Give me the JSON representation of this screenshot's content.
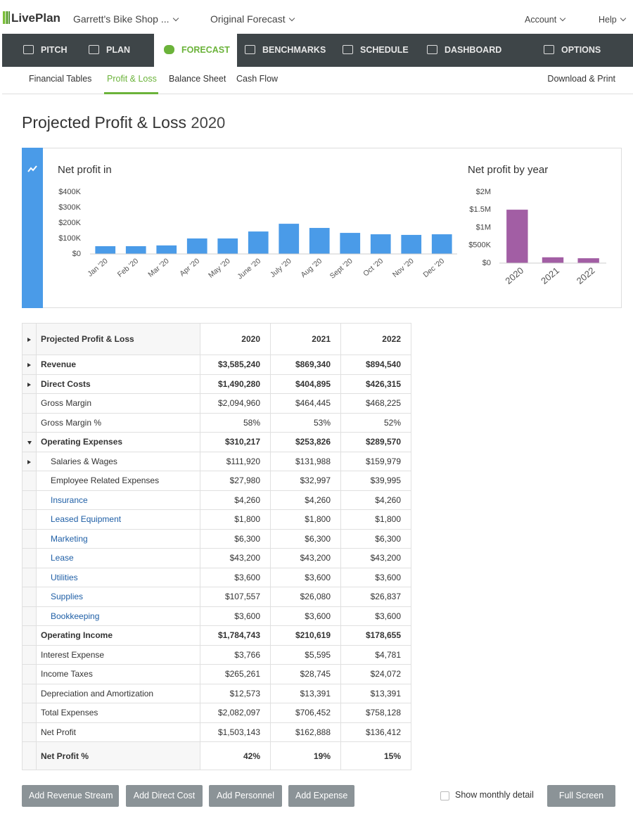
{
  "header": {
    "logo": "LivePlan",
    "business": "Garrett's Bike Shop ...",
    "forecast": "Original Forecast",
    "account": "Account",
    "help": "Help"
  },
  "nav": {
    "tabs": [
      "PITCH",
      "PLAN",
      "FORECAST",
      "BENCHMARKS",
      "SCHEDULE",
      "DASHBOARD",
      "OPTIONS"
    ]
  },
  "subnav": {
    "links": [
      "Financial Tables",
      "Profit & Loss",
      "Balance Sheet",
      "Cash Flow"
    ],
    "download": "Download & Print"
  },
  "page": {
    "title": "Projected Profit & Loss",
    "year": "2020"
  },
  "chart_data": [
    {
      "type": "bar",
      "title": "Net profit in",
      "categories": [
        "Jan '20",
        "Feb '20",
        "Mar '20",
        "Apr '20",
        "May '20",
        "June '20",
        "July '20",
        "Aug '20",
        "Sept '20",
        "Oct '20",
        "Nov '20",
        "Dec '20"
      ],
      "values": [
        50000,
        50000,
        55000,
        100000,
        100000,
        145000,
        195000,
        168000,
        136000,
        127000,
        123000,
        127000
      ],
      "color": "#4a9be8",
      "ylim": [
        0,
        400000
      ],
      "yticks": [
        {
          "value": 0,
          "label": "$0"
        },
        {
          "value": 100000,
          "label": "$100K"
        },
        {
          "value": 200000,
          "label": "$200K"
        },
        {
          "value": 300000,
          "label": "$300K"
        },
        {
          "value": 400000,
          "label": "$400K"
        }
      ],
      "grid": false
    },
    {
      "type": "bar",
      "title": "Net profit by year",
      "categories": [
        "2020",
        "2021",
        "2022"
      ],
      "values": [
        1503143,
        162888,
        136412
      ],
      "color": "#a25ea4",
      "ylim": [
        0,
        2000000
      ],
      "yticks": [
        {
          "value": 0,
          "label": "$0"
        },
        {
          "value": 500000,
          "label": "$500K"
        },
        {
          "value": 1000000,
          "label": "$1M"
        },
        {
          "value": 1500000,
          "label": "$1.5M"
        },
        {
          "value": 2000000,
          "label": "$2M"
        }
      ],
      "grid": false
    }
  ],
  "table": {
    "header": [
      "Projected Profit & Loss",
      "2020",
      "2021",
      "2022"
    ],
    "rows": [
      {
        "cells": [
          "Revenue",
          "$3,585,240",
          "$869,340",
          "$894,540"
        ],
        "bold": true,
        "toggle": "closed"
      },
      {
        "cells": [
          "Direct Costs",
          "$1,490,280",
          "$404,895",
          "$426,315"
        ],
        "bold": true,
        "toggle": "closed"
      },
      {
        "cells": [
          "Gross Margin",
          "$2,094,960",
          "$464,445",
          "$468,225"
        ]
      },
      {
        "cells": [
          "Gross Margin %",
          "58%",
          "53%",
          "52%"
        ]
      },
      {
        "cells": [
          "Operating Expenses",
          "$310,217",
          "$253,826",
          "$289,570"
        ],
        "bold": true,
        "toggle": "open"
      },
      {
        "cells": [
          "Salaries & Wages",
          "$111,920",
          "$131,988",
          "$159,979"
        ],
        "indent": true,
        "toggle": "closed"
      },
      {
        "cells": [
          "Employee Related Expenses",
          "$27,980",
          "$32,997",
          "$39,995"
        ],
        "indent": true
      },
      {
        "cells": [
          "Insurance",
          "$4,260",
          "$4,260",
          "$4,260"
        ],
        "indent": true,
        "link": true
      },
      {
        "cells": [
          "Leased Equipment",
          "$1,800",
          "$1,800",
          "$1,800"
        ],
        "indent": true,
        "link": true
      },
      {
        "cells": [
          "Marketing",
          "$6,300",
          "$6,300",
          "$6,300"
        ],
        "indent": true,
        "link": true
      },
      {
        "cells": [
          "Lease",
          "$43,200",
          "$43,200",
          "$43,200"
        ],
        "indent": true,
        "link": true
      },
      {
        "cells": [
          "Utilities",
          "$3,600",
          "$3,600",
          "$3,600"
        ],
        "indent": true,
        "link": true
      },
      {
        "cells": [
          "Supplies",
          "$107,557",
          "$26,080",
          "$26,837"
        ],
        "indent": true,
        "link": true
      },
      {
        "cells": [
          "Bookkeeping",
          "$3,600",
          "$3,600",
          "$3,600"
        ],
        "indent": true,
        "link": true
      },
      {
        "cells": [
          "Operating Income",
          "$1,784,743",
          "$210,619",
          "$178,655"
        ],
        "bold": true
      },
      {
        "cells": [
          "Interest Expense",
          "$3,766",
          "$5,595",
          "$4,781"
        ]
      },
      {
        "cells": [
          "Income Taxes",
          "$265,261",
          "$28,745",
          "$24,072"
        ]
      },
      {
        "cells": [
          "Depreciation and Amortization",
          "$12,573",
          "$13,391",
          "$13,391"
        ]
      },
      {
        "cells": [
          "Total Expenses",
          "$2,082,097",
          "$706,452",
          "$758,128"
        ]
      },
      {
        "cells": [
          "Net Profit",
          "$1,503,143",
          "$162,888",
          "$136,412"
        ]
      },
      {
        "cells": [
          "Net Profit %",
          "42%",
          "19%",
          "15%"
        ],
        "bold": true
      }
    ]
  },
  "footer": {
    "buttons": [
      "Add Revenue Stream",
      "Add Direct Cost",
      "Add Personnel",
      "Add Expense"
    ],
    "checkbox": "Show monthly detail",
    "fullscreen": "Full Screen"
  }
}
